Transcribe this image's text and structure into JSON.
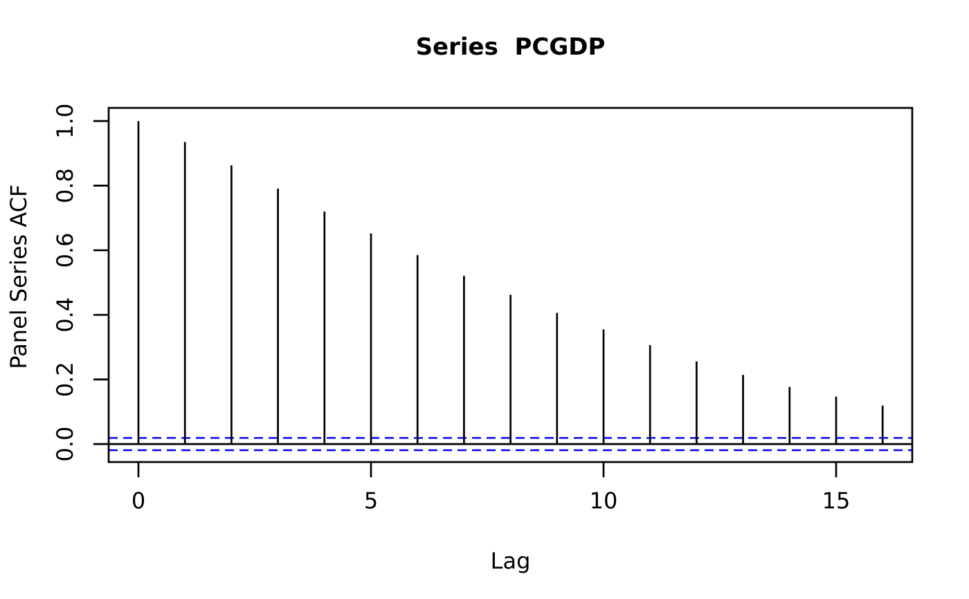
{
  "figure": {
    "background": "#ffffff",
    "foreground": "#000000"
  },
  "chart_data": {
    "type": "bar",
    "subtype": "acf-spike-plot",
    "title": "Series  PCGDP",
    "xlabel": "Lag",
    "ylabel": "Panel Series ACF",
    "x": [
      0,
      1,
      2,
      3,
      4,
      5,
      6,
      7,
      8,
      9,
      10,
      11,
      12,
      13,
      14,
      15,
      16
    ],
    "values": [
      1.0,
      0.935,
      0.863,
      0.791,
      0.72,
      0.652,
      0.585,
      0.521,
      0.462,
      0.406,
      0.355,
      0.306,
      0.256,
      0.214,
      0.177,
      0.147,
      0.119
    ],
    "confidence_bounds": {
      "upper": 0.019,
      "lower": -0.019
    },
    "zero_line": 0,
    "x_ticks": [
      0,
      5,
      10,
      15
    ],
    "x_tick_labels": [
      "0",
      "5",
      "10",
      "15"
    ],
    "y_ticks": [
      0.0,
      0.2,
      0.4,
      0.6,
      0.8,
      1.0
    ],
    "y_tick_labels": [
      "0.0",
      "0.2",
      "0.4",
      "0.6",
      "0.8",
      "1.0"
    ],
    "xlim": [
      -0.66,
      16.66
    ],
    "ylim": [
      -0.055,
      1.04
    ],
    "grid": false,
    "legend": null,
    "colors": {
      "spike": "#000000",
      "box": "#000000",
      "zero_line": "#000000",
      "confidence_line": "#0000FF"
    }
  }
}
